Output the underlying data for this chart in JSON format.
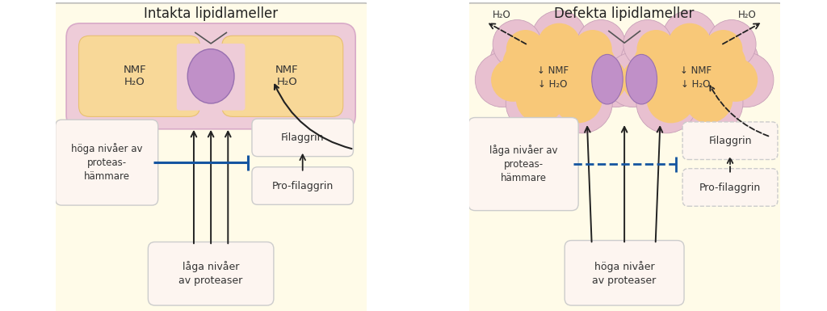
{
  "left_title": "Intakta lipidlameller",
  "right_title": "Defekta lipidlameller",
  "left_label_hoga": "höga nivåer av\nproteas-\nhämmare",
  "left_label_laga": "låga nivåer\nav proteaser",
  "left_label_filaggrin": "Filaggrin",
  "left_label_profilaggrin": "Pro-filaggrin",
  "left_label_nmf1": "NMF\nH₂O",
  "left_label_nmf2": "NMF\nH₂O",
  "right_label_hoga": "höga nivåer\nav proteaser",
  "right_label_laga": "låga nivåer av\nproteas-\nhämmare",
  "right_label_filaggrin": "Filaggrin",
  "right_label_profilaggrin": "Pro-filaggrin",
  "right_label_nmf1": "↓ NMF\n↓ H₂O",
  "right_label_nmf2": "↓ NMF\n↓ H₂O",
  "h2o_label": "H₂O"
}
